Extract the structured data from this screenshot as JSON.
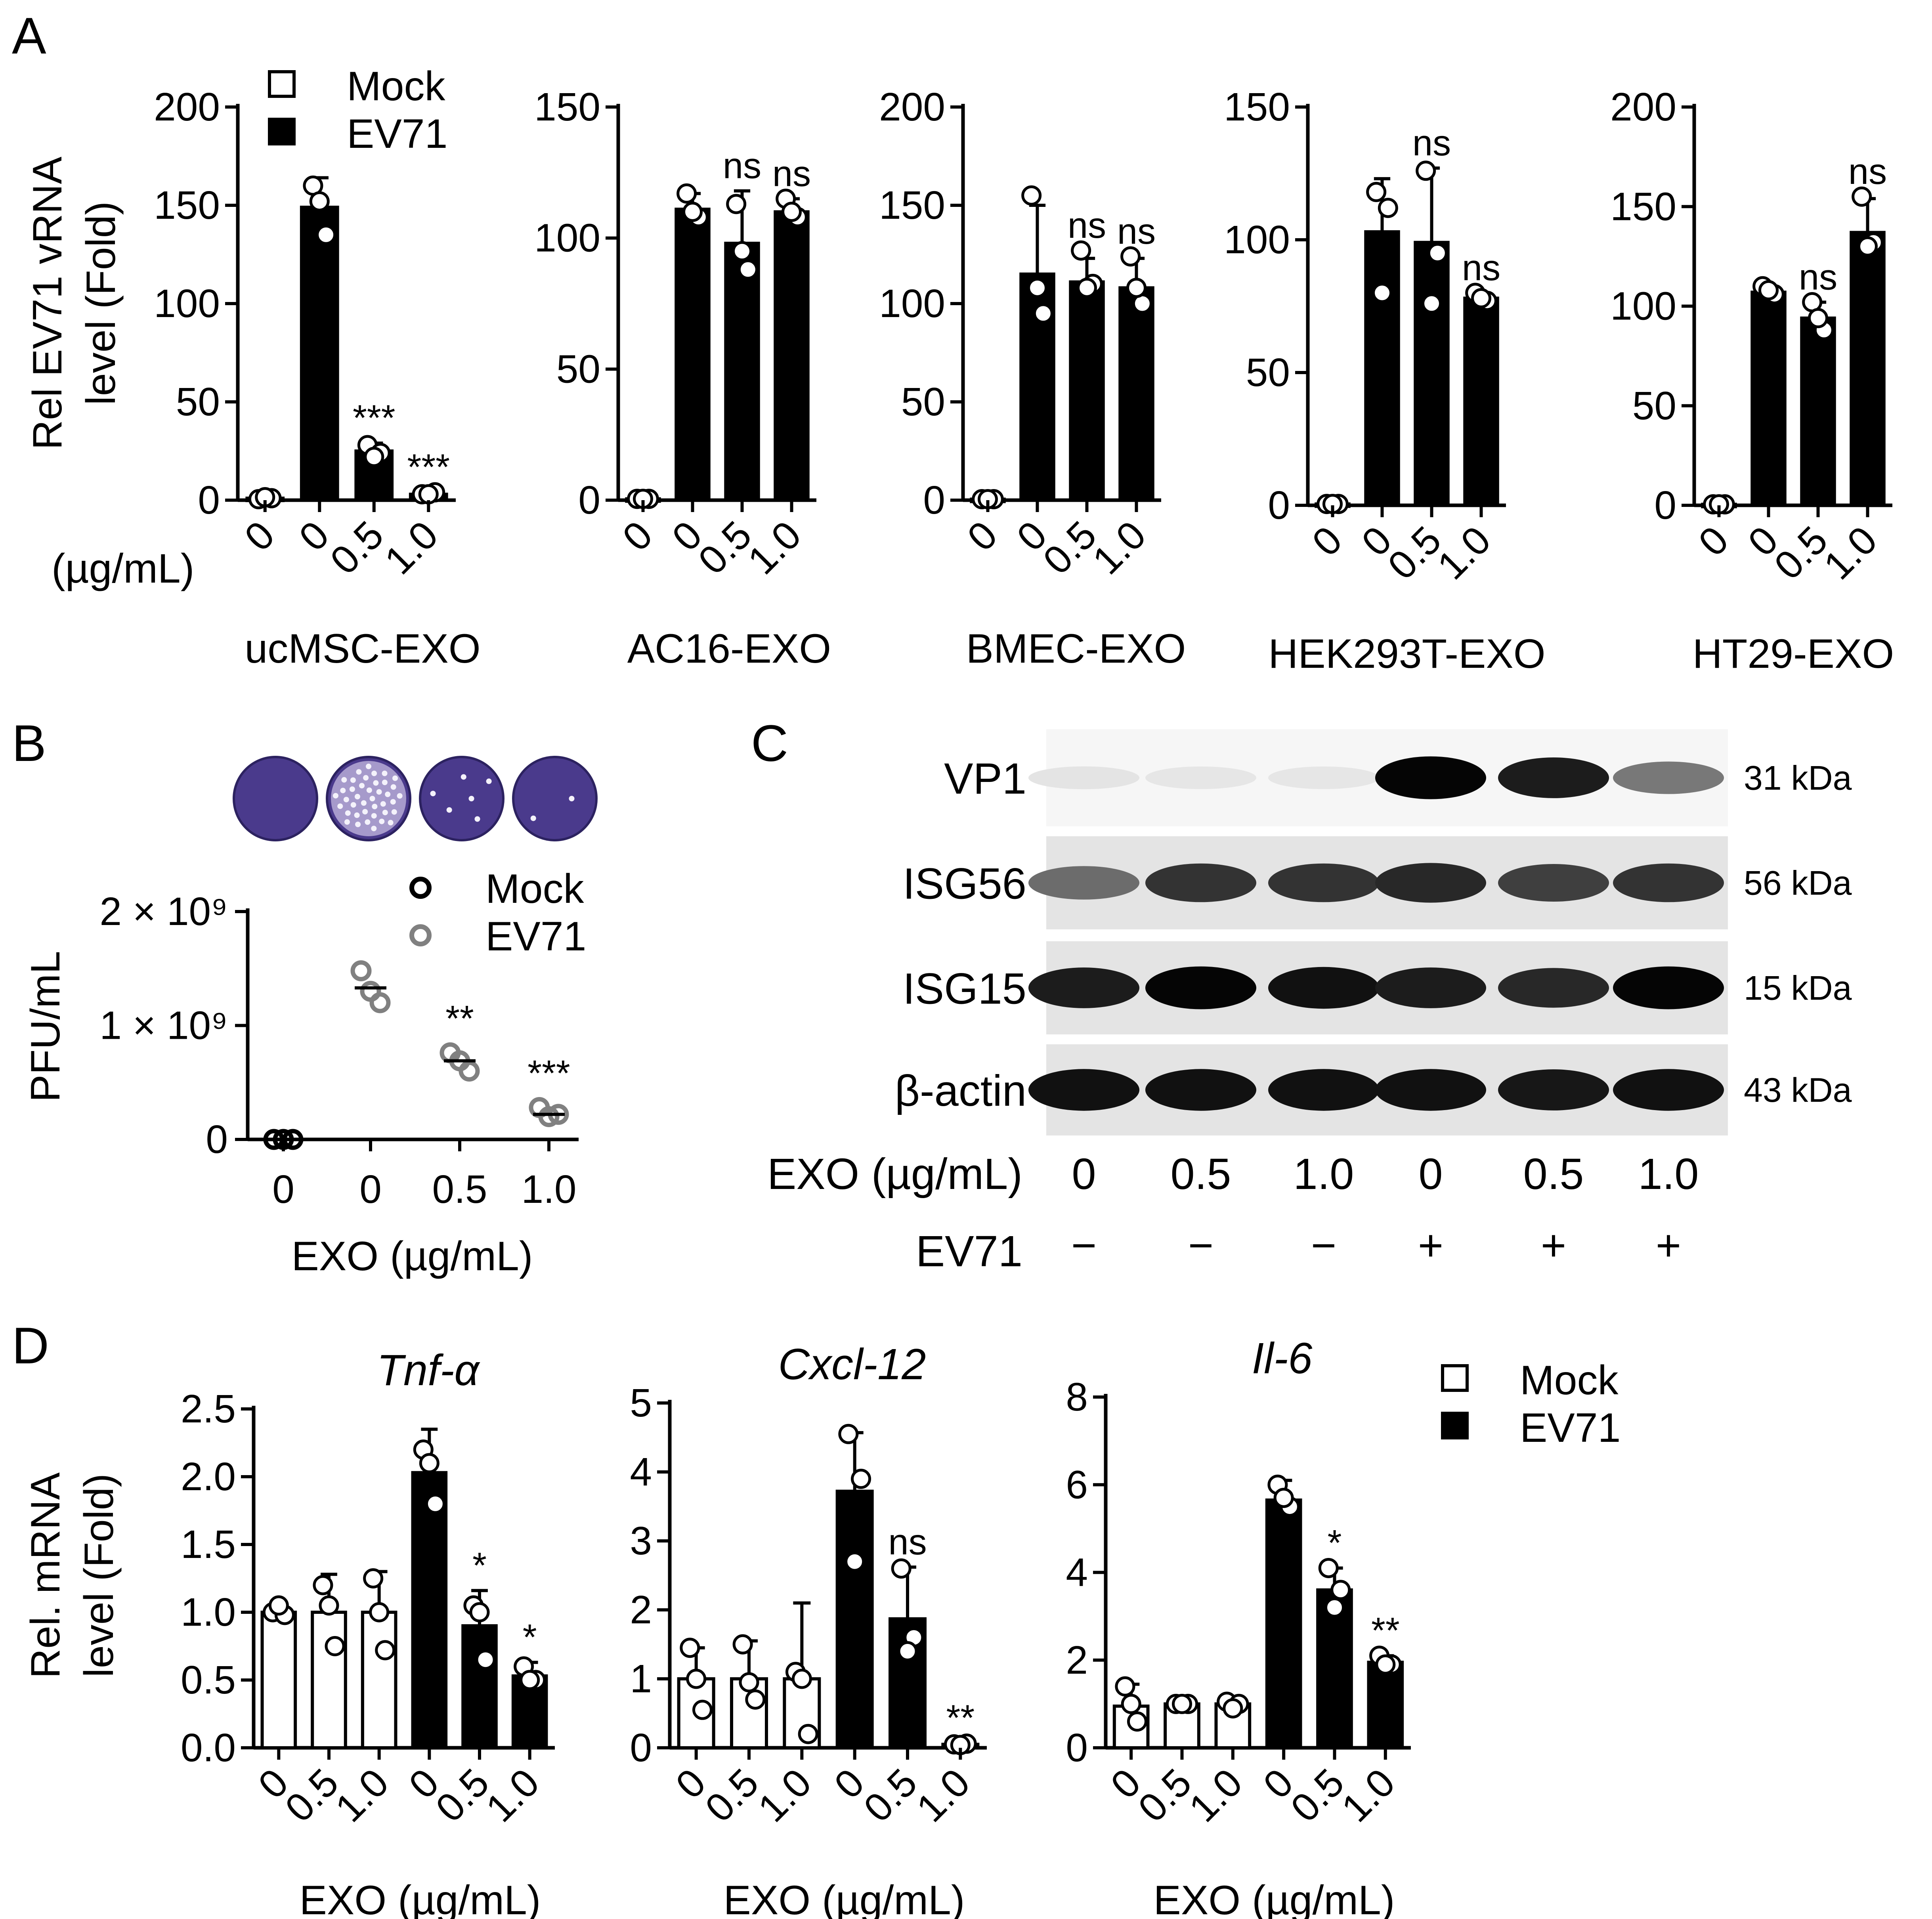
{
  "panel_letters": [
    "A",
    "B",
    "C",
    "D"
  ],
  "colors": {
    "mock_fill": "#ffffff",
    "ev71_fill": "#000000",
    "edge": "#000000",
    "b_mock": "#000000",
    "b_ev71": "#808080",
    "plate": "#4a3a8c"
  },
  "chart_data": [
    {
      "panel": "A",
      "type": "bar",
      "xlabel": "ucMSC-EXO",
      "ylabel_lines": [
        "Rel EV71 vRNA",
        "level (Fold)"
      ],
      "ylim": [
        0,
        200
      ],
      "yticks": [
        "0",
        "50",
        "100",
        "150",
        "200"
      ],
      "unit_label": "(µg/mL)",
      "categories": [
        "0",
        "0",
        "0.5",
        "1.0"
      ],
      "group": [
        "Mock",
        "EV71",
        "EV71",
        "EV71"
      ],
      "values": [
        1,
        149,
        25,
        3
      ],
      "errors": [
        0,
        15,
        4,
        1
      ],
      "points": [
        [
          0.5,
          1,
          1.5
        ],
        [
          160,
          135,
          152
        ],
        [
          28,
          24,
          22
        ],
        [
          3,
          4,
          3
        ]
      ],
      "significance": [
        "",
        "",
        "***",
        "***"
      ],
      "legend": [
        "Mock",
        "EV71"
      ]
    },
    {
      "panel": "A",
      "type": "bar",
      "xlabel": "AC16-EXO",
      "ylim": [
        0,
        150
      ],
      "yticks": [
        "0",
        "50",
        "100",
        "150"
      ],
      "categories": [
        "0",
        "0",
        "0.5",
        "1.0"
      ],
      "group": [
        "Mock",
        "EV71",
        "EV71",
        "EV71"
      ],
      "values": [
        0.5,
        111,
        98,
        110
      ],
      "errors": [
        0,
        6,
        20,
        5
      ],
      "points": [
        [
          0.5,
          0.5,
          0.5
        ],
        [
          117,
          108,
          110
        ],
        [
          113,
          88,
          95
        ],
        [
          115,
          108,
          110
        ]
      ],
      "significance": [
        "",
        "",
        "ns",
        "ns"
      ]
    },
    {
      "panel": "A",
      "type": "bar",
      "xlabel": "BMEC-EXO",
      "ylim": [
        0,
        200
      ],
      "yticks": [
        "0",
        "50",
        "100",
        "150",
        "200"
      ],
      "categories": [
        "0",
        "0",
        "0.5",
        "1.0"
      ],
      "group": [
        "Mock",
        "EV71",
        "EV71",
        "EV71"
      ],
      "values": [
        0.5,
        115,
        111,
        108
      ],
      "errors": [
        0,
        35,
        12,
        15
      ],
      "points": [
        [
          0.5,
          0.5,
          0.5
        ],
        [
          155,
          95,
          108
        ],
        [
          127,
          110,
          108
        ],
        [
          124,
          100,
          108
        ]
      ],
      "significance": [
        "",
        "",
        "ns",
        "ns"
      ]
    },
    {
      "panel": "A",
      "type": "bar",
      "xlabel": "HEK293T-EXO",
      "ylim": [
        0,
        150
      ],
      "yticks": [
        "0",
        "50",
        "100",
        "150"
      ],
      "categories": [
        "0",
        "0",
        "0.5",
        "1.0"
      ],
      "group": [
        "Mock",
        "EV71",
        "EV71",
        "EV71"
      ],
      "values": [
        0.5,
        103,
        99,
        78
      ],
      "errors": [
        0,
        20,
        28,
        2
      ],
      "points": [
        [
          0.5,
          0.5,
          0.5
        ],
        [
          118,
          112,
          80
        ],
        [
          126,
          95,
          76
        ],
        [
          80,
          77,
          78
        ]
      ],
      "significance": [
        "",
        "",
        "ns",
        "ns"
      ]
    },
    {
      "panel": "A",
      "type": "bar",
      "xlabel": "HT29-EXO",
      "ylim": [
        0,
        200
      ],
      "yticks": [
        "0",
        "50",
        "100",
        "150",
        "200"
      ],
      "categories": [
        "0",
        "0",
        "0.5",
        "1.0"
      ],
      "group": [
        "Mock",
        "EV71",
        "EV71",
        "EV71"
      ],
      "values": [
        0.5,
        107,
        94,
        137
      ],
      "errors": [
        0,
        3,
        8,
        17
      ],
      "points": [
        [
          0.5,
          0.5,
          0.5
        ],
        [
          110,
          106,
          108
        ],
        [
          102,
          88,
          94
        ],
        [
          155,
          132,
          130
        ]
      ],
      "significance": [
        "",
        "",
        "ns",
        "ns"
      ]
    },
    {
      "panel": "B",
      "type": "scatter",
      "ylabel": "PFU/mL",
      "xlabel": "EXO (µg/mL)",
      "ylim": [
        0,
        2000000000
      ],
      "yticks": [
        "0",
        "1 × 10⁹",
        "2 × 10⁹"
      ],
      "categories": [
        "0",
        "0",
        "0.5",
        "1.0"
      ],
      "group": [
        "Mock",
        "EV71",
        "EV71",
        "EV71"
      ],
      "means": [
        0,
        1330000000,
        690000000,
        220000000
      ],
      "points": [
        [
          0,
          0,
          0
        ],
        [
          1480000000,
          1200000000,
          1300000000
        ],
        [
          760000000,
          600000000,
          690000000
        ],
        [
          280000000,
          220000000,
          200000000
        ]
      ],
      "significance": [
        "",
        "",
        "**",
        "***"
      ],
      "legend": [
        "Mock",
        "EV71"
      ]
    },
    {
      "panel": "D",
      "type": "bar",
      "title": "Tnf-α",
      "ylabel_lines": [
        "Rel. mRNA",
        "level (Fold)"
      ],
      "xlabel": "EXO (µg/mL)",
      "ylim": [
        0,
        2.5
      ],
      "yticks": [
        "0.0",
        "0.5",
        "1.0",
        "1.5",
        "2.0",
        "2.5"
      ],
      "categories": [
        "0",
        "0.5",
        "1.0",
        "0",
        "0.5",
        "1.0"
      ],
      "group": [
        "Mock",
        "Mock",
        "Mock",
        "EV71",
        "EV71",
        "EV71"
      ],
      "values": [
        1.0,
        1.0,
        1.0,
        2.03,
        0.9,
        0.53
      ],
      "errors": [
        0.08,
        0.28,
        0.3,
        0.32,
        0.26,
        0.1
      ],
      "points": [
        [
          1.0,
          0.98,
          1.05
        ],
        [
          1.2,
          0.75,
          1.05
        ],
        [
          1.25,
          0.72,
          1.0
        ],
        [
          2.2,
          1.8,
          2.1
        ],
        [
          1.05,
          0.65,
          1.0
        ],
        [
          0.6,
          0.5,
          0.5
        ]
      ],
      "significance": [
        "",
        "",
        "",
        "",
        "*",
        "*"
      ],
      "legend": [
        "Mock",
        "EV71"
      ]
    },
    {
      "panel": "D",
      "type": "bar",
      "title": "Cxcl-12",
      "xlabel": "EXO (µg/mL)",
      "ylim": [
        0,
        5
      ],
      "yticks": [
        "0",
        "1",
        "2",
        "3",
        "4",
        "5"
      ],
      "categories": [
        "0",
        "0.5",
        "1.0",
        "0",
        "0.5",
        "1.0"
      ],
      "group": [
        "Mock",
        "Mock",
        "Mock",
        "EV71",
        "EV71",
        "EV71"
      ],
      "values": [
        1.0,
        1.0,
        1.0,
        3.72,
        1.87,
        0.05
      ],
      "errors": [
        0.45,
        0.55,
        1.1,
        0.85,
        0.75,
        0.02
      ],
      "points": [
        [
          1.45,
          0.55,
          1.0
        ],
        [
          1.5,
          0.7,
          0.95
        ],
        [
          1.1,
          0.2,
          1.0
        ],
        [
          4.55,
          3.9,
          2.7
        ],
        [
          2.6,
          1.6,
          1.4
        ],
        [
          0.05,
          0.06,
          0.04
        ]
      ],
      "significance": [
        "",
        "",
        "",
        "",
        "ns",
        "**"
      ]
    },
    {
      "panel": "D",
      "type": "bar",
      "title": "Il-6",
      "xlabel": "EXO (µg/mL)",
      "ylim": [
        0,
        8
      ],
      "yticks": [
        "0",
        "2",
        "4",
        "6",
        "8"
      ],
      "categories": [
        "0",
        "0.5",
        "1.0",
        "0",
        "0.5",
        "1.0"
      ],
      "group": [
        "Mock",
        "Mock",
        "Mock",
        "EV71",
        "EV71",
        "EV71"
      ],
      "values": [
        0.95,
        1.0,
        1.0,
        5.65,
        3.6,
        1.95
      ],
      "errors": [
        0.5,
        0.05,
        0.1,
        0.45,
        0.5,
        0.15
      ],
      "points": [
        [
          1.4,
          0.6,
          1.0
        ],
        [
          1.0,
          1.0,
          1.0
        ],
        [
          1.05,
          1.0,
          0.9
        ],
        [
          6.0,
          5.5,
          5.7
        ],
        [
          4.1,
          3.6,
          3.2
        ],
        [
          2.1,
          1.9,
          1.9
        ]
      ],
      "significance": [
        "",
        "",
        "",
        "",
        "*",
        "**"
      ]
    }
  ],
  "blot": {
    "panel": "C",
    "rows": [
      {
        "label": "VP1",
        "kda": "31 kDa"
      },
      {
        "label": "ISG56",
        "kda": "56 kDa"
      },
      {
        "label": "ISG15",
        "kda": "15 kDa"
      },
      {
        "label": "β-actin",
        "kda": "43 kDa"
      }
    ],
    "intensity": {
      "VP1": [
        0.03,
        0.02,
        0.02,
        1.0,
        0.9,
        0.5
      ],
      "ISG56": [
        0.55,
        0.8,
        0.8,
        0.85,
        0.75,
        0.8
      ],
      "ISG15": [
        0.9,
        1.0,
        0.95,
        0.9,
        0.85,
        1.0
      ],
      "β-actin": [
        0.95,
        0.95,
        0.95,
        0.95,
        0.92,
        0.95
      ]
    },
    "exo_label": "EXO (µg/mL)",
    "exo_values": [
      "0",
      "0.5",
      "1.0",
      "0",
      "0.5",
      "1.0"
    ],
    "ev71_label": "EV71",
    "ev71_values": [
      "−",
      "−",
      "−",
      "+",
      "+",
      "+"
    ]
  },
  "plates": {
    "panel": "B",
    "spot_density": [
      0.0,
      1.0,
      0.15,
      0.05
    ]
  }
}
